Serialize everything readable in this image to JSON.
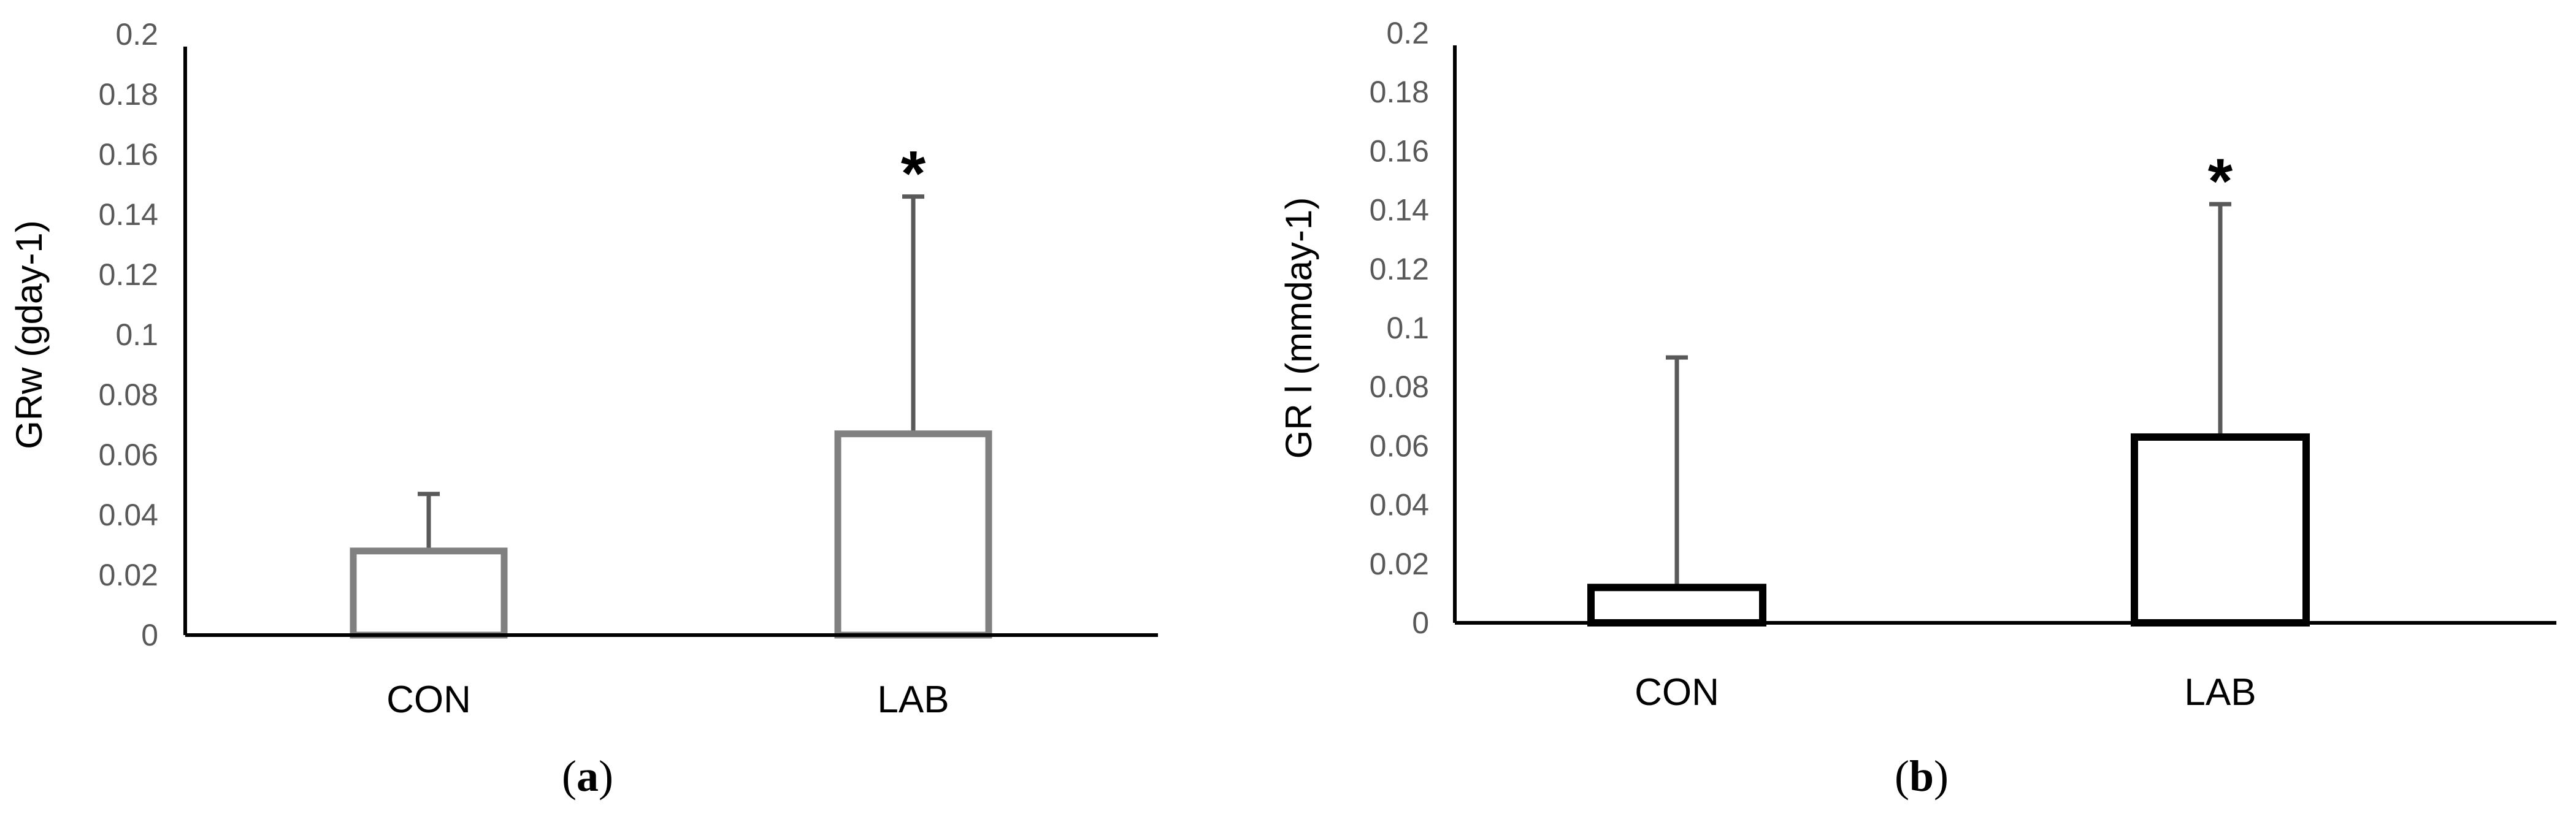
{
  "chart_data": [
    {
      "type": "bar",
      "panel_label": "(a)",
      "panel_letter": "a",
      "ylabel": "GRw (gday-1)",
      "xlabel": "",
      "title": "",
      "categories": [
        "CON",
        "LAB"
      ],
      "values": [
        0.028,
        0.067
      ],
      "error_upper": [
        0.047,
        0.146
      ],
      "annotations": [
        "",
        "*"
      ],
      "ylim": [
        0,
        0.2
      ],
      "yticks": [
        "0",
        "0.02",
        "0.04",
        "0.06",
        "0.08",
        "0.1",
        "0.12",
        "0.14",
        "0.16",
        "0.18",
        "0.2"
      ],
      "bar_color": "#808080",
      "grid": false
    },
    {
      "type": "bar",
      "panel_label": "(b)",
      "panel_letter": "b",
      "ylabel": "GR l (mmday-1)",
      "xlabel": "",
      "title": "",
      "categories": [
        "CON",
        "LAB"
      ],
      "values": [
        0.012,
        0.063
      ],
      "error_upper": [
        0.09,
        0.142
      ],
      "annotations": [
        "",
        "*"
      ],
      "ylim": [
        0,
        0.2
      ],
      "yticks": [
        "0",
        "0.02",
        "0.04",
        "0.06",
        "0.08",
        "0.1",
        "0.12",
        "0.14",
        "0.16",
        "0.18",
        "0.2"
      ],
      "bar_color": "#000000",
      "grid": false
    }
  ]
}
